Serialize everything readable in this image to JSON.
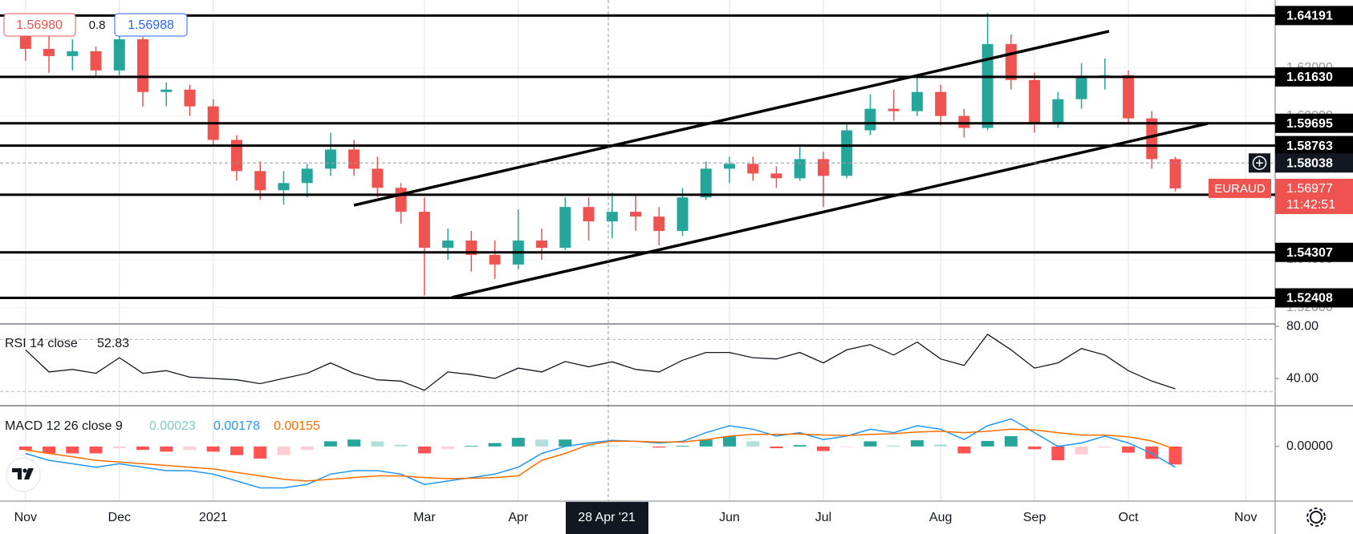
{
  "chart_data": {
    "type": "candlestick",
    "symbol": "EURAUD",
    "quote": {
      "bid": "1.56980",
      "spread": 0.8,
      "ask": "1.56988"
    },
    "categories": [
      "Nov",
      null,
      null,
      null,
      "Dec",
      null,
      null,
      null,
      "2021",
      null,
      null,
      null,
      null,
      null,
      null,
      null,
      null,
      "Mar",
      null,
      null,
      null,
      "Apr",
      null,
      null,
      null,
      null,
      null,
      null,
      null,
      null,
      "Jun",
      null,
      null,
      null,
      "Jul",
      null,
      null,
      null,
      null,
      "Aug",
      null,
      null,
      null,
      "Sep",
      null,
      null,
      null,
      "Oct",
      null,
      null,
      null,
      null,
      "Nov",
      null
    ],
    "open": [
      1.638,
      1.628,
      1.625,
      1.627,
      1.619,
      1.632,
      1.61,
      1.611,
      1.604,
      1.59,
      1.577,
      1.569,
      1.572,
      1.578,
      1.586,
      1.578,
      1.57,
      1.56,
      1.545,
      1.548,
      1.542,
      1.538,
      1.548,
      1.545,
      1.562,
      1.556,
      1.56,
      1.558,
      1.552,
      1.566,
      1.578,
      1.58,
      1.576,
      1.574,
      1.582,
      1.575,
      1.594,
      1.603,
      1.602,
      1.61,
      1.6,
      1.595,
      1.63,
      1.615,
      1.597,
      1.607,
      1.616,
      1.617,
      1.599,
      1.582,
      null,
      null,
      null,
      null
    ],
    "high": [
      1.642,
      1.636,
      1.632,
      1.629,
      1.635,
      1.633,
      1.614,
      1.613,
      1.607,
      1.592,
      1.581,
      1.577,
      1.58,
      1.593,
      1.59,
      1.583,
      1.572,
      1.566,
      1.553,
      1.552,
      1.548,
      1.561,
      1.553,
      1.566,
      1.566,
      1.568,
      1.567,
      1.562,
      1.57,
      1.581,
      1.583,
      1.583,
      1.579,
      1.587,
      1.585,
      1.597,
      1.609,
      1.611,
      1.617,
      1.613,
      1.603,
      1.643,
      1.634,
      1.618,
      1.61,
      1.622,
      1.624,
      1.619,
      1.602,
      1.583,
      null,
      null,
      null,
      null
    ],
    "low": [
      1.623,
      1.618,
      1.619,
      1.616,
      1.617,
      1.604,
      1.604,
      1.6,
      1.588,
      1.573,
      1.565,
      1.563,
      1.566,
      1.575,
      1.575,
      1.566,
      1.555,
      1.525,
      1.54,
      1.535,
      1.532,
      1.536,
      1.54,
      1.544,
      1.548,
      1.549,
      1.552,
      1.546,
      1.55,
      1.565,
      1.572,
      1.573,
      1.57,
      1.573,
      1.562,
      1.574,
      1.592,
      1.598,
      1.6,
      1.596,
      1.591,
      1.594,
      1.611,
      1.593,
      1.595,
      1.603,
      1.611,
      1.597,
      1.578,
      1.5685,
      null,
      null,
      null,
      null
    ],
    "close": [
      1.628,
      1.625,
      1.627,
      1.619,
      1.632,
      1.61,
      1.611,
      1.604,
      1.59,
      1.577,
      1.569,
      1.572,
      1.578,
      1.586,
      1.578,
      1.57,
      1.56,
      1.545,
      1.548,
      1.542,
      1.538,
      1.548,
      1.545,
      1.562,
      1.556,
      1.56,
      1.558,
      1.552,
      1.566,
      1.578,
      1.58,
      1.576,
      1.574,
      1.582,
      1.575,
      1.594,
      1.603,
      1.602,
      1.61,
      1.6,
      1.595,
      1.63,
      1.615,
      1.597,
      1.607,
      1.616,
      1.617,
      1.599,
      1.582,
      1.56977,
      null,
      null,
      null,
      null
    ],
    "up_color": "#26a69a",
    "down_color": "#ef5350",
    "ylim": [
      1.51354,
      1.64839
    ],
    "yticks": [
      {
        "value": 1.52,
        "label": "1.52000"
      },
      {
        "value": 1.54,
        "label": "1.54000"
      },
      {
        "value": 1.6,
        "label": "1.60000"
      },
      {
        "value": 1.62,
        "label": "1.62000"
      }
    ],
    "grid": true,
    "levels": [
      1.64191,
      {
        "value": 1.6163,
        "label": "1.61630"
      },
      1.59695,
      1.58763,
      1.56712,
      1.54307,
      1.52408
    ],
    "crosshair": {
      "x_label": "28 Apr '21",
      "price": 1.58038
    },
    "countdown": "11:42:51",
    "rsi": {
      "type": "line",
      "label": "RSI 14 close",
      "color": "#131722",
      "values": [
        62,
        45,
        47,
        44,
        56,
        44,
        46,
        41,
        40,
        39,
        36,
        40,
        44,
        52,
        44,
        39,
        38,
        31,
        45,
        43,
        40,
        48,
        45,
        53,
        49,
        52.83,
        47,
        45,
        54,
        60,
        60,
        56,
        55,
        60,
        52,
        62,
        66,
        58,
        68,
        55,
        50,
        74,
        62,
        48,
        52,
        63,
        58,
        46,
        38,
        32,
        null,
        null,
        null,
        null
      ],
      "ylim": [
        19.7,
        81.3
      ],
      "yticks": [
        {
          "value": 40,
          "label": "40.00"
        },
        {
          "value": 80,
          "label": "80.00"
        }
      ],
      "bands": [
        70,
        30
      ]
    },
    "macd": {
      "type": "macd",
      "label": "MACD 12 26 close 9",
      "ylim": [
        -0.01582,
        0.01157
      ],
      "yticks": [
        {
          "value": 0,
          "label": "0.00000"
        }
      ],
      "series": [
        {
          "kind": "histogram",
          "color": "#80cbc4",
          "colors": [
            "#26a69a",
            "#b2dfdb",
            "#ffcdd2",
            "#ff5252"
          ],
          "values": [
            -0.001,
            -0.002,
            -0.002,
            -0.002,
            -0.0005,
            -0.001,
            -0.0015,
            -0.001,
            -0.0015,
            -0.0025,
            -0.0035,
            -0.0025,
            -0.001,
            0.0015,
            0.002,
            0.0015,
            0.0005,
            -0.002,
            -0.0007,
            0.0002,
            0.001,
            0.0025,
            0.002,
            0.002,
            0.0005,
            0.00023,
            0.0,
            -0.0003,
            0.0002,
            0.002,
            0.003,
            0.0015,
            -0.0005,
            0.0004,
            -0.0013,
            -0.0002,
            0.0015,
            0.0003,
            0.0018,
            0.0006,
            -0.002,
            0.0016,
            0.003,
            -0.0008,
            -0.004,
            -0.0023,
            -0.0003,
            -0.0018,
            -0.0036,
            -0.0052,
            null,
            null,
            null,
            null
          ]
        },
        {
          "kind": "line",
          "color": "#2196f3",
          "values": [
            -0.002,
            -0.004,
            -0.005,
            -0.006,
            -0.005,
            -0.006,
            -0.007,
            -0.007,
            -0.008,
            -0.01,
            -0.012,
            -0.012,
            -0.011,
            -0.008,
            -0.007,
            -0.007,
            -0.008,
            -0.011,
            -0.01,
            -0.009,
            -0.008,
            -0.006,
            -0.002,
            0.0,
            0.001,
            0.00178,
            0.0015,
            0.001,
            0.0015,
            0.004,
            0.006,
            0.005,
            0.003,
            0.004,
            0.002,
            0.003,
            0.005,
            0.004,
            0.006,
            0.005,
            0.002,
            0.006,
            0.008,
            0.004,
            0.0,
            0.001,
            0.003,
            0.001,
            -0.002,
            -0.006,
            null,
            null,
            null,
            null
          ]
        },
        {
          "kind": "line",
          "color": "#ff6d00",
          "values": [
            -0.001,
            -0.002,
            -0.003,
            -0.004,
            -0.0045,
            -0.005,
            -0.0055,
            -0.006,
            -0.0065,
            -0.0075,
            -0.0085,
            -0.0095,
            -0.01,
            -0.0095,
            -0.009,
            -0.0085,
            -0.0085,
            -0.009,
            -0.0093,
            -0.0092,
            -0.009,
            -0.0085,
            -0.004,
            -0.002,
            0.0005,
            0.00155,
            0.0015,
            0.0013,
            0.0013,
            0.002,
            0.003,
            0.0035,
            0.0035,
            0.0036,
            0.0033,
            0.0032,
            0.0035,
            0.0037,
            0.0042,
            0.0044,
            0.004,
            0.0044,
            0.005,
            0.0048,
            0.004,
            0.0033,
            0.0033,
            0.0028,
            0.0016,
            -0.0008,
            null,
            null,
            null,
            null
          ]
        }
      ]
    }
  }
}
